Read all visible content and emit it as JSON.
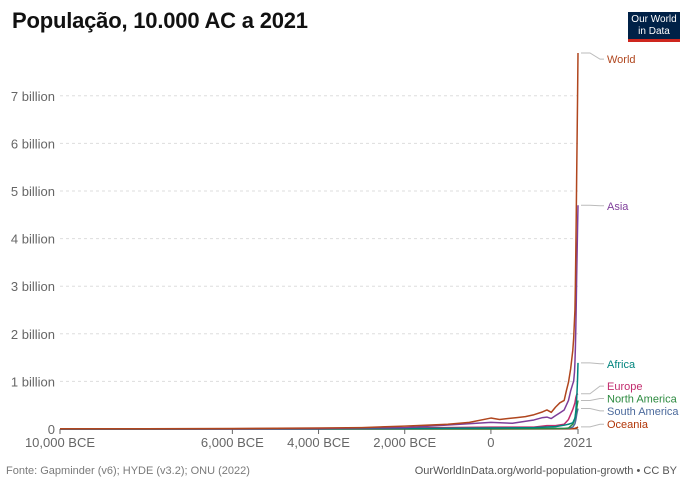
{
  "header": {
    "title": "População, 10.000 AC a 2021",
    "logo_line1": "Our World",
    "logo_line2": "in Data"
  },
  "footer": {
    "source": "Fonte: Gapminder (v6); HYDE (v3.2); ONU (2022)",
    "url": "OurWorldInData.org/world-population-growth • CC BY"
  },
  "chart_data": {
    "type": "line",
    "title": "População, 10.000 AC a 2021",
    "xlabel": "",
    "ylabel": "",
    "xlim": [
      -10000,
      2021
    ],
    "ylim": [
      0,
      7.9
    ],
    "y_unit": "billion",
    "grid": true,
    "legend": "right-end-labels",
    "x_ticks": [
      {
        "value": -10000,
        "label": "10,000 BCE"
      },
      {
        "value": -6000,
        "label": "6,000 BCE"
      },
      {
        "value": -4000,
        "label": "4,000 BCE"
      },
      {
        "value": -2000,
        "label": "2,000 BCE"
      },
      {
        "value": 0,
        "label": "0"
      },
      {
        "value": 2021,
        "label": "2021"
      }
    ],
    "y_ticks": [
      {
        "value": 0,
        "label": "0"
      },
      {
        "value": 1,
        "label": "1 billion"
      },
      {
        "value": 2,
        "label": "2 billion"
      },
      {
        "value": 3,
        "label": "3 billion"
      },
      {
        "value": 4,
        "label": "4 billion"
      },
      {
        "value": 5,
        "label": "5 billion"
      },
      {
        "value": 6,
        "label": "6 billion"
      },
      {
        "value": 7,
        "label": "7 billion"
      }
    ],
    "series": [
      {
        "name": "World",
        "color": "#b0461e",
        "end": 7.9,
        "points": [
          [
            -10000,
            0.004
          ],
          [
            -8000,
            0.005
          ],
          [
            -6000,
            0.01
          ],
          [
            -4000,
            0.02
          ],
          [
            -3000,
            0.03
          ],
          [
            -2000,
            0.06
          ],
          [
            -1000,
            0.1
          ],
          [
            -500,
            0.14
          ],
          [
            0,
            0.23
          ],
          [
            200,
            0.2
          ],
          [
            400,
            0.22
          ],
          [
            600,
            0.24
          ],
          [
            800,
            0.26
          ],
          [
            1000,
            0.3
          ],
          [
            1200,
            0.36
          ],
          [
            1300,
            0.4
          ],
          [
            1400,
            0.35
          ],
          [
            1500,
            0.46
          ],
          [
            1600,
            0.55
          ],
          [
            1700,
            0.6
          ],
          [
            1750,
            0.8
          ],
          [
            1800,
            0.98
          ],
          [
            1850,
            1.26
          ],
          [
            1900,
            1.65
          ],
          [
            1920,
            1.9
          ],
          [
            1940,
            2.3
          ],
          [
            1950,
            2.5
          ],
          [
            1960,
            3.0
          ],
          [
            1970,
            3.7
          ],
          [
            1980,
            4.45
          ],
          [
            1990,
            5.3
          ],
          [
            2000,
            6.1
          ],
          [
            2010,
            6.9
          ],
          [
            2021,
            7.9
          ]
        ]
      },
      {
        "name": "Asia",
        "color": "#7e3e9a",
        "end": 4.7,
        "points": [
          [
            -10000,
            0.002
          ],
          [
            -6000,
            0.006
          ],
          [
            -4000,
            0.011
          ],
          [
            -2000,
            0.03
          ],
          [
            0,
            0.14
          ],
          [
            500,
            0.12
          ],
          [
            1000,
            0.19
          ],
          [
            1200,
            0.24
          ],
          [
            1300,
            0.25
          ],
          [
            1400,
            0.22
          ],
          [
            1500,
            0.28
          ],
          [
            1600,
            0.34
          ],
          [
            1700,
            0.4
          ],
          [
            1750,
            0.5
          ],
          [
            1800,
            0.6
          ],
          [
            1850,
            0.8
          ],
          [
            1900,
            0.95
          ],
          [
            1920,
            1.0
          ],
          [
            1940,
            1.2
          ],
          [
            1950,
            1.4
          ],
          [
            1960,
            1.7
          ],
          [
            1970,
            2.1
          ],
          [
            1980,
            2.6
          ],
          [
            1990,
            3.2
          ],
          [
            2000,
            3.7
          ],
          [
            2010,
            4.2
          ],
          [
            2021,
            4.7
          ]
        ]
      },
      {
        "name": "Africa",
        "color": "#00847e",
        "end": 1.39,
        "points": [
          [
            -10000,
            0.0005
          ],
          [
            -4000,
            0.003
          ],
          [
            0,
            0.02
          ],
          [
            1000,
            0.03
          ],
          [
            1500,
            0.05
          ],
          [
            1700,
            0.08
          ],
          [
            1800,
            0.1
          ],
          [
            1900,
            0.13
          ],
          [
            1950,
            0.23
          ],
          [
            1970,
            0.37
          ],
          [
            1990,
            0.63
          ],
          [
            2000,
            0.81
          ],
          [
            2010,
            1.04
          ],
          [
            2021,
            1.39
          ]
        ]
      },
      {
        "name": "Europe",
        "color": "#c22c6d",
        "end": 0.74,
        "points": [
          [
            -10000,
            0.0005
          ],
          [
            -4000,
            0.003
          ],
          [
            0,
            0.04
          ],
          [
            1000,
            0.04
          ],
          [
            1300,
            0.07
          ],
          [
            1500,
            0.07
          ],
          [
            1700,
            0.1
          ],
          [
            1800,
            0.2
          ],
          [
            1900,
            0.41
          ],
          [
            1950,
            0.55
          ],
          [
            1970,
            0.66
          ],
          [
            1990,
            0.72
          ],
          [
            2000,
            0.73
          ],
          [
            2021,
            0.74
          ]
        ]
      },
      {
        "name": "North America",
        "color": "#2c8a3f",
        "end": 0.6,
        "points": [
          [
            -10000,
            0.0002
          ],
          [
            0,
            0.003
          ],
          [
            1500,
            0.01
          ],
          [
            1700,
            0.01
          ],
          [
            1800,
            0.02
          ],
          [
            1900,
            0.1
          ],
          [
            1950,
            0.22
          ],
          [
            1970,
            0.32
          ],
          [
            1990,
            0.42
          ],
          [
            2000,
            0.49
          ],
          [
            2021,
            0.6
          ]
        ]
      },
      {
        "name": "South America",
        "color": "#4c6a9c",
        "end": 0.43,
        "points": [
          [
            -10000,
            0.0002
          ],
          [
            0,
            0.004
          ],
          [
            1500,
            0.01
          ],
          [
            1700,
            0.01
          ],
          [
            1800,
            0.01
          ],
          [
            1900,
            0.04
          ],
          [
            1950,
            0.11
          ],
          [
            1970,
            0.19
          ],
          [
            1990,
            0.3
          ],
          [
            2000,
            0.35
          ],
          [
            2021,
            0.43
          ]
        ]
      },
      {
        "name": "Oceania",
        "color": "#b13507",
        "end": 0.045,
        "points": [
          [
            -10000,
            0.0001
          ],
          [
            0,
            0.001
          ],
          [
            1800,
            0.002
          ],
          [
            1900,
            0.006
          ],
          [
            1950,
            0.013
          ],
          [
            2000,
            0.031
          ],
          [
            2021,
            0.045
          ]
        ]
      }
    ],
    "labels": [
      {
        "series": "World",
        "label_y": 7.77
      },
      {
        "series": "Asia",
        "label_y": 4.69
      },
      {
        "series": "Africa",
        "label_y": 1.37
      },
      {
        "series": "Europe",
        "label_y": 0.9
      },
      {
        "series": "North America",
        "label_y": 0.64
      },
      {
        "series": "South America",
        "label_y": 0.38
      },
      {
        "series": "Oceania",
        "label_y": 0.1
      }
    ]
  }
}
